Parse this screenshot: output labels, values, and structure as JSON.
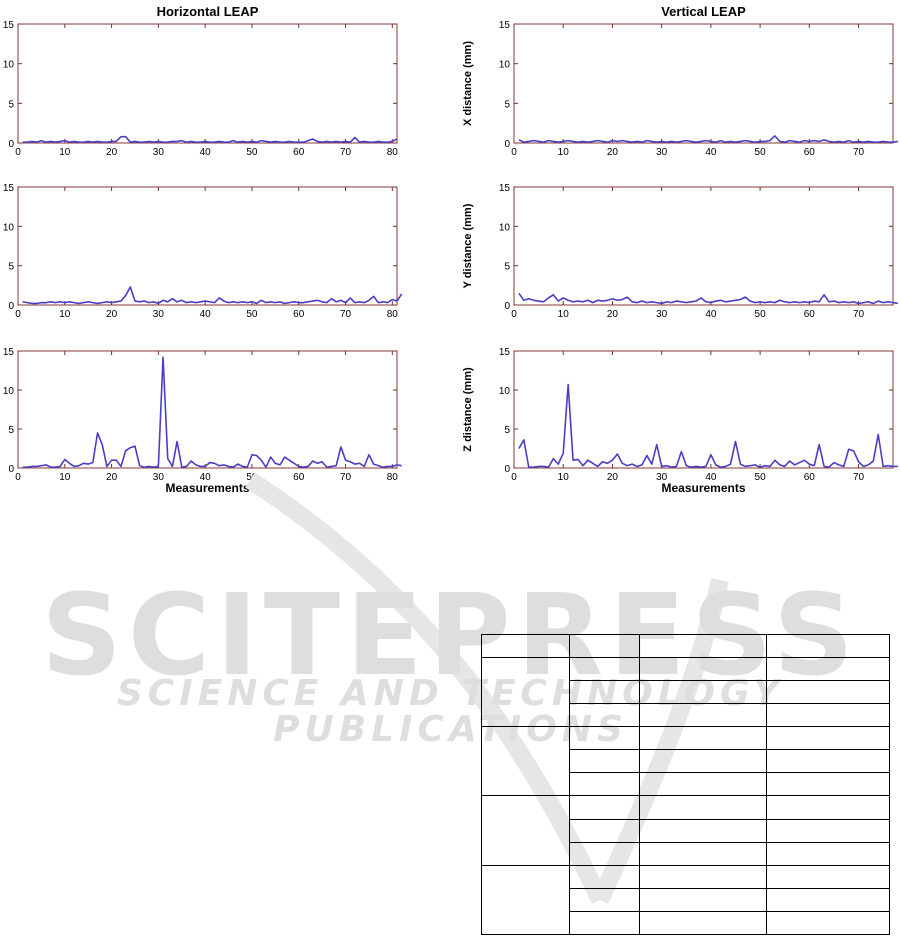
{
  "chart_data": [
    {
      "type": "line",
      "title": "Horizontal LEAP",
      "xlabel": "",
      "ylabel": "",
      "xlim": [
        0,
        81
      ],
      "ylim": [
        0,
        15
      ],
      "xticks": [
        0,
        10,
        20,
        30,
        40,
        50,
        60,
        70,
        80
      ],
      "yticks": [
        0,
        5,
        10,
        15
      ],
      "series": [
        {
          "values": [
            0.1,
            0.1,
            0.2,
            0.1,
            0.3,
            0.1,
            0.2,
            0.1,
            0.2,
            0.3,
            0.1,
            0.2,
            0.1,
            0.1,
            0.2,
            0.1,
            0.2,
            0.1,
            0.1,
            0.2,
            0.2,
            0.8,
            0.8,
            0.1,
            0.2,
            0.1,
            0.1,
            0.2,
            0.1,
            0.2,
            0.1,
            0.1,
            0.2,
            0.2,
            0.3,
            0.1,
            0.2,
            0.1,
            0.1,
            0.2,
            0.1,
            0.1,
            0.2,
            0.1,
            0.1,
            0.3,
            0.1,
            0.2,
            0.1,
            0.2,
            0.1,
            0.3,
            0.2,
            0.1,
            0.2,
            0.1,
            0.1,
            0.2,
            0.1,
            0.1,
            0.1,
            0.3,
            0.5,
            0.2,
            0.1,
            0.2,
            0.1,
            0.2,
            0.1,
            0.2,
            0.1,
            0.7,
            0.1,
            0.2,
            0.1,
            0.1,
            0.2,
            0.1,
            0.1,
            0.2,
            0.5
          ]
        }
      ],
      "color": "#4a3fc4"
    },
    {
      "type": "line",
      "title": "Vertical LEAP",
      "xlabel": "",
      "ylabel": "X distance (mm)",
      "xlim": [
        0,
        77
      ],
      "ylim": [
        0,
        15
      ],
      "xticks": [
        0,
        10,
        20,
        30,
        40,
        50,
        60,
        70
      ],
      "yticks": [
        0,
        5,
        10,
        15
      ],
      "series": [
        {
          "values": [
            0.4,
            0.1,
            0.2,
            0.3,
            0.2,
            0.1,
            0.3,
            0.2,
            0.1,
            0.2,
            0.3,
            0.2,
            0.1,
            0.2,
            0.1,
            0.2,
            0.3,
            0.2,
            0.1,
            0.3,
            0.2,
            0.3,
            0.2,
            0.1,
            0.2,
            0.1,
            0.3,
            0.2,
            0.1,
            0.2,
            0.1,
            0.2,
            0.1,
            0.2,
            0.3,
            0.2,
            0.1,
            0.2,
            0.3,
            0.2,
            0.1,
            0.3,
            0.1,
            0.2,
            0.1,
            0.2,
            0.3,
            0.2,
            0.1,
            0.2,
            0.2,
            0.3,
            0.9,
            0.2,
            0.1,
            0.3,
            0.2,
            0.1,
            0.3,
            0.2,
            0.3,
            0.2,
            0.4,
            0.2,
            0.1,
            0.2,
            0.1,
            0.3,
            0.1,
            0.2,
            0.1,
            0.2,
            0.1,
            0.1,
            0.2,
            0.1,
            0.1,
            0.2
          ]
        }
      ],
      "color": "#4a3fc4"
    },
    {
      "type": "line",
      "title": "",
      "xlabel": "",
      "ylabel": "",
      "xlim": [
        0,
        81
      ],
      "ylim": [
        0,
        15
      ],
      "xticks": [
        0,
        10,
        20,
        30,
        40,
        50,
        60,
        70,
        80
      ],
      "yticks": [
        0,
        5,
        10,
        15
      ],
      "series": [
        {
          "values": [
            0.4,
            0.3,
            0.2,
            0.2,
            0.3,
            0.3,
            0.4,
            0.3,
            0.4,
            0.3,
            0.4,
            0.3,
            0.2,
            0.3,
            0.4,
            0.3,
            0.2,
            0.3,
            0.4,
            0.3,
            0.4,
            0.5,
            1.2,
            2.3,
            0.5,
            0.4,
            0.5,
            0.3,
            0.4,
            0.2,
            0.6,
            0.4,
            0.8,
            0.4,
            0.6,
            0.3,
            0.4,
            0.3,
            0.4,
            0.5,
            0.4,
            0.3,
            0.9,
            0.5,
            0.3,
            0.4,
            0.3,
            0.4,
            0.3,
            0.4,
            0.2,
            0.6,
            0.3,
            0.4,
            0.3,
            0.4,
            0.2,
            0.3,
            0.4,
            0.3,
            0.3,
            0.4,
            0.5,
            0.6,
            0.4,
            0.3,
            0.8,
            0.4,
            0.6,
            0.3,
            0.9,
            0.3,
            0.4,
            0.3,
            0.6,
            1.1,
            0.3,
            0.4,
            0.3,
            0.7,
            0.5,
            1.4
          ]
        }
      ],
      "color": "#4a3fc4"
    },
    {
      "type": "line",
      "title": "",
      "xlabel": "",
      "ylabel": "Y distance (mm)",
      "xlim": [
        0,
        77
      ],
      "ylim": [
        0,
        15
      ],
      "xticks": [
        0,
        10,
        20,
        30,
        40,
        50,
        60,
        70
      ],
      "yticks": [
        0,
        5,
        10,
        15
      ],
      "series": [
        {
          "values": [
            1.5,
            0.6,
            0.8,
            0.6,
            0.5,
            0.4,
            0.9,
            1.3,
            0.5,
            0.9,
            0.6,
            0.4,
            0.5,
            0.4,
            0.6,
            0.3,
            0.6,
            0.5,
            0.6,
            0.8,
            0.6,
            0.7,
            1.0,
            0.4,
            0.3,
            0.5,
            0.3,
            0.4,
            0.3,
            0.2,
            0.4,
            0.3,
            0.5,
            0.4,
            0.3,
            0.4,
            0.5,
            0.9,
            0.4,
            0.3,
            0.5,
            0.6,
            0.4,
            0.5,
            0.6,
            0.7,
            1.0,
            0.5,
            0.3,
            0.4,
            0.3,
            0.4,
            0.3,
            0.6,
            0.4,
            0.3,
            0.4,
            0.3,
            0.4,
            0.3,
            0.5,
            0.4,
            1.3,
            0.4,
            0.5,
            0.3,
            0.4,
            0.3,
            0.4,
            0.2,
            0.3,
            0.4,
            0.2,
            0.5,
            0.3,
            0.4,
            0.3,
            0.2
          ]
        }
      ],
      "color": "#4a3fc4"
    },
    {
      "type": "line",
      "title": "",
      "xlabel": "Measurements",
      "ylabel": "",
      "xlim": [
        0,
        81
      ],
      "ylim": [
        0,
        15
      ],
      "xticks": [
        0,
        10,
        20,
        30,
        40,
        50,
        60,
        70,
        80
      ],
      "yticks": [
        0,
        5,
        10,
        15
      ],
      "series": [
        {
          "values": [
            0.1,
            0.1,
            0.2,
            0.2,
            0.3,
            0.4,
            0.1,
            0.1,
            0.2,
            1.1,
            0.6,
            0.2,
            0.3,
            0.6,
            0.5,
            0.7,
            4.5,
            3.0,
            0.2,
            1.0,
            1.0,
            0.2,
            2.2,
            2.6,
            2.8,
            0.3,
            0.1,
            0.2,
            0.1,
            0.2,
            14.2,
            1.2,
            0.2,
            3.4,
            0.1,
            0.2,
            0.9,
            0.4,
            0.2,
            0.2,
            0.7,
            0.6,
            0.3,
            0.4,
            0.2,
            0.1,
            0.5,
            0.2,
            0.1,
            1.7,
            1.6,
            1.0,
            0.1,
            1.4,
            0.6,
            0.4,
            1.4,
            1.0,
            0.6,
            0.2,
            0.1,
            0.2,
            0.9,
            0.6,
            0.8,
            0.1,
            0.2,
            0.3,
            2.7,
            1.0,
            0.8,
            0.5,
            0.6,
            0.2,
            1.7,
            0.5,
            0.3,
            0.1,
            0.2,
            0.2,
            0.4,
            0.3
          ]
        }
      ],
      "color": "#4a3fc4"
    },
    {
      "type": "line",
      "title": "",
      "xlabel": "Measurements",
      "ylabel": "Z distance (mm)",
      "xlim": [
        0,
        77
      ],
      "ylim": [
        0,
        15
      ],
      "xticks": [
        0,
        10,
        20,
        30,
        40,
        50,
        60,
        70
      ],
      "yticks": [
        0,
        5,
        10,
        15
      ],
      "series": [
        {
          "values": [
            2.5,
            3.6,
            0.1,
            0.1,
            0.2,
            0.2,
            0.1,
            1.2,
            0.5,
            1.9,
            10.7,
            1.0,
            1.1,
            0.3,
            1.0,
            0.6,
            0.2,
            0.8,
            0.6,
            1.0,
            1.8,
            0.6,
            0.3,
            0.5,
            0.2,
            0.4,
            1.6,
            0.5,
            3.0,
            0.2,
            0.3,
            0.1,
            0.2,
            2.1,
            0.3,
            0.1,
            0.2,
            0.1,
            0.2,
            1.7,
            0.4,
            0.1,
            0.2,
            0.5,
            3.4,
            0.5,
            0.2,
            0.3,
            0.4,
            0.1,
            0.3,
            0.2,
            1.0,
            0.4,
            0.2,
            0.9,
            0.4,
            0.7,
            1.0,
            0.5,
            0.3,
            3.0,
            0.2,
            0.1,
            0.7,
            0.4,
            0.2,
            2.4,
            2.2,
            0.8,
            0.2,
            0.4,
            0.9,
            4.3,
            0.2,
            0.3,
            0.2,
            0.2
          ]
        }
      ],
      "color": "#4a3fc4"
    }
  ],
  "watermark": {
    "main": "SCITEPRESS",
    "sub": "SCIENCE AND TECHNOLOGY PUBLICATIONS"
  },
  "table": {
    "rows": 13,
    "cols": 4
  }
}
